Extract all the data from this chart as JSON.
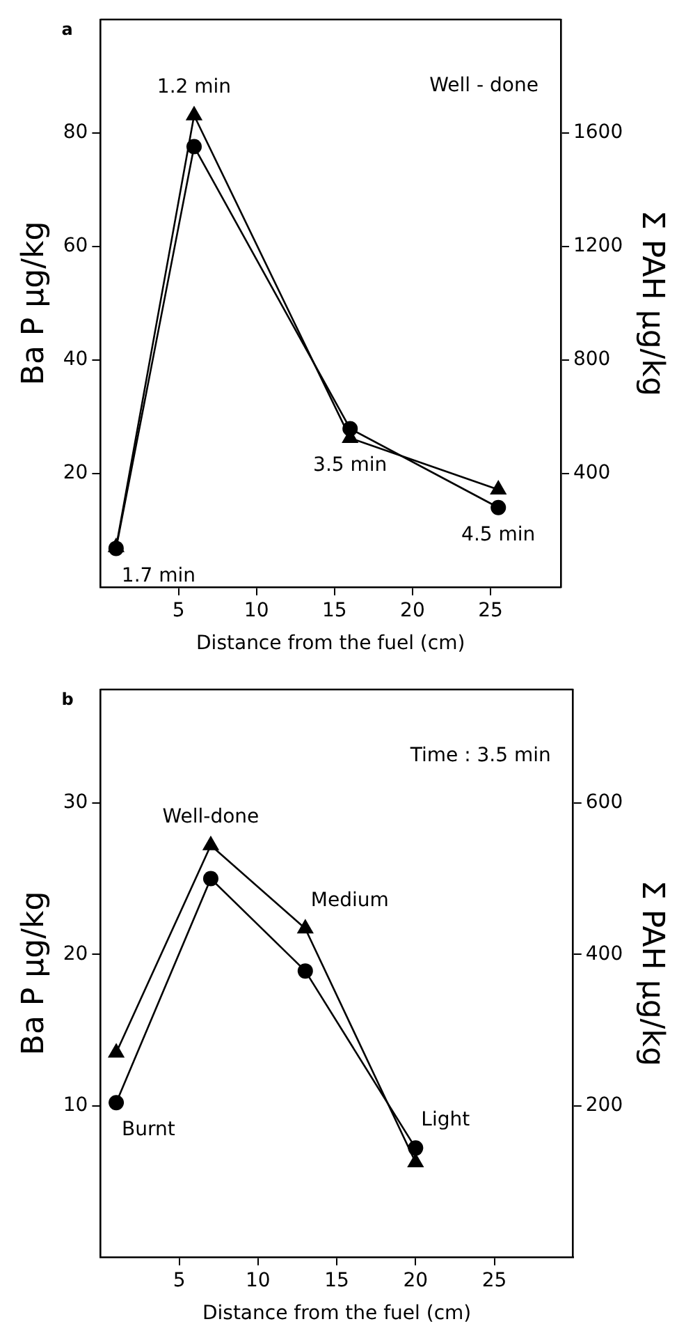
{
  "chart_data": [
    {
      "type": "line",
      "title": "a",
      "xlabel": "Distance from the fuel (cm)",
      "ylabel": "Ba P μg/kg",
      "y2label": "Σ PAH μg/kg",
      "xlim": [
        0,
        29.5
      ],
      "xticks": [
        5,
        10,
        15,
        20,
        25
      ],
      "ylim": [
        0,
        100
      ],
      "yticks": [
        20,
        40,
        60,
        80
      ],
      "y2lim": [
        0,
        2000
      ],
      "y2ticks": [
        400,
        800,
        1200,
        1600
      ],
      "x": [
        1,
        6,
        16,
        25.5
      ],
      "grid": false,
      "legend": false,
      "line_style": "solid",
      "series": [
        {
          "color": "#000000",
          "marker": "circle",
          "values": [
            6.8,
            77.6,
            27.9,
            14.0
          ]
        },
        {
          "color": "#000000",
          "marker": "triangle",
          "axis": "y2",
          "values": [
            140,
            1662,
            525,
            343
          ]
        }
      ],
      "annotations": [
        {
          "text": "1.2 min",
          "x": 6,
          "y": 83.1
        },
        {
          "text": "1.7 min",
          "x": 1,
          "y": 6.8
        },
        {
          "text": "3.5 min",
          "x": 16,
          "y": 26.25
        },
        {
          "text": "4.5 min",
          "x": 25.5,
          "y": 14.0
        },
        "Well - done"
      ]
    },
    {
      "type": "line",
      "title": "b",
      "xlabel": "Distance from the fuel (cm)",
      "ylabel": "Ba P μg/kg",
      "y2label": "Σ PAH μg/kg",
      "xlim": [
        0,
        30
      ],
      "xticks": [
        5,
        10,
        15,
        20,
        25
      ],
      "ylim": [
        0,
        37.5
      ],
      "yticks": [
        10,
        20,
        30
      ],
      "y2lim": [
        0,
        750
      ],
      "y2ticks": [
        200,
        400,
        600
      ],
      "x": [
        1,
        7,
        13,
        20
      ],
      "grid": false,
      "legend": false,
      "line_style": "solid",
      "series": [
        {
          "color": "#000000",
          "marker": "circle",
          "values": [
            10.2,
            25.0,
            18.9,
            7.2
          ]
        },
        {
          "color": "#000000",
          "marker": "triangle",
          "axis": "y2",
          "values": [
            270,
            544,
            434,
            125
          ]
        }
      ],
      "annotations": [
        {
          "text": "Well-done",
          "x": 7,
          "y": 27.2
        },
        {
          "text": "Medium",
          "x": 13,
          "y": 21.7
        },
        {
          "text": "Burnt",
          "x": 1,
          "y": 10.2
        },
        {
          "text": "Light",
          "x": 20,
          "y": 7.2
        },
        "Time : 3.5 min"
      ]
    }
  ]
}
